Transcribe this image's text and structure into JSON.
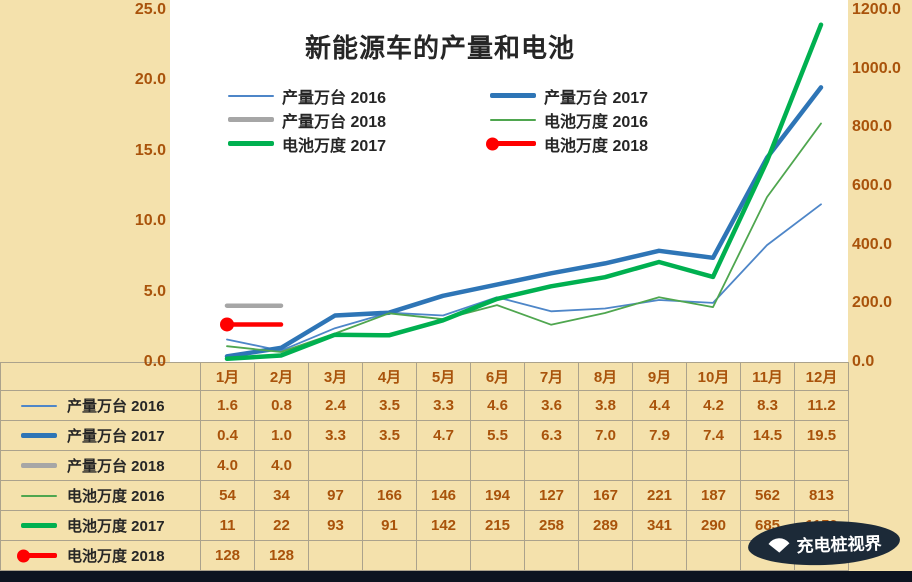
{
  "watermark": {
    "text": "充电桩视界"
  },
  "theme": {
    "background": "#F4E1AC",
    "plot_background": "#FFFFFF",
    "number_color": "#A9530B",
    "text_color": "#262626",
    "grid_color": "#ABA28C",
    "watermark_bg": "#1C2A38",
    "bottom_bar": "#0D1420"
  },
  "chart_data": {
    "type": "line",
    "title": "新能源车的产量和电池",
    "categories": [
      "1月",
      "2月",
      "3月",
      "4月",
      "5月",
      "6月",
      "7月",
      "8月",
      "9月",
      "10月",
      "11月",
      "12月"
    ],
    "left_axis": {
      "min": 0,
      "max": 25,
      "tick_labels": [
        "25.0",
        "20.0",
        "15.0",
        "10.0",
        "5.0",
        "0.0"
      ]
    },
    "right_axis": {
      "min": 0,
      "max": 1200,
      "tick_labels": [
        "1200.0",
        "1000.0",
        "800.0",
        "600.0",
        "400.0",
        "200.0",
        "0.0"
      ]
    },
    "legend_position": "top-center",
    "grid": false,
    "series": [
      {
        "name": "产量万台 2016",
        "axis": "left",
        "color": "#4E86C8",
        "width": 1.8,
        "marker": false,
        "values": [
          1.6,
          0.8,
          2.4,
          3.5,
          3.3,
          4.6,
          3.6,
          3.8,
          4.4,
          4.2,
          8.3,
          11.2
        ]
      },
      {
        "name": "产量万台 2017",
        "axis": "left",
        "color": "#2E75B6",
        "width": 4.5,
        "marker": false,
        "values": [
          0.4,
          1.0,
          3.3,
          3.5,
          4.7,
          5.5,
          6.3,
          7.0,
          7.9,
          7.4,
          14.5,
          19.5
        ]
      },
      {
        "name": "产量万台 2018",
        "axis": "left",
        "color": "#A6A6A6",
        "width": 4.5,
        "marker": false,
        "values": [
          4.0,
          4.0,
          null,
          null,
          null,
          null,
          null,
          null,
          null,
          null,
          null,
          null
        ]
      },
      {
        "name": "电池万度 2016",
        "axis": "right",
        "color": "#4FA64F",
        "width": 1.8,
        "marker": false,
        "values": [
          54,
          34,
          97,
          166,
          146,
          194,
          127,
          167,
          221,
          187,
          562,
          813
        ]
      },
      {
        "name": "电池万度 2017",
        "axis": "right",
        "color": "#00B050",
        "width": 4.5,
        "marker": false,
        "values": [
          11,
          22,
          93,
          91,
          142,
          215,
          258,
          289,
          341,
          290,
          685,
          1150
        ]
      },
      {
        "name": "电池万度 2018",
        "axis": "right",
        "color": "#FF0000",
        "width": 4.5,
        "marker": true,
        "values": [
          128,
          128,
          null,
          null,
          null,
          null,
          null,
          null,
          null,
          null,
          null,
          null
        ]
      }
    ]
  },
  "table": {
    "rows": [
      {
        "label": "产量万台 2016",
        "values": [
          "1.6",
          "0.8",
          "2.4",
          "3.5",
          "3.3",
          "4.6",
          "3.6",
          "3.8",
          "4.4",
          "4.2",
          "8.3",
          "11.2"
        ]
      },
      {
        "label": "产量万台 2017",
        "values": [
          "0.4",
          "1.0",
          "3.3",
          "3.5",
          "4.7",
          "5.5",
          "6.3",
          "7.0",
          "7.9",
          "7.4",
          "14.5",
          "19.5"
        ]
      },
      {
        "label": "产量万台 2018",
        "values": [
          "4.0",
          "4.0",
          "",
          "",
          "",
          "",
          "",
          "",
          "",
          "",
          "",
          ""
        ]
      },
      {
        "label": "电池万度 2016",
        "values": [
          "54",
          "34",
          "97",
          "166",
          "146",
          "194",
          "127",
          "167",
          "221",
          "187",
          "562",
          "813"
        ]
      },
      {
        "label": "电池万度 2017",
        "values": [
          "11",
          "22",
          "93",
          "91",
          "142",
          "215",
          "258",
          "289",
          "341",
          "290",
          "685",
          "1150"
        ]
      },
      {
        "label": "电池万度 2018",
        "values": [
          "128",
          "128",
          "",
          "",
          "",
          "",
          "",
          "",
          "",
          "",
          "",
          ""
        ]
      }
    ]
  }
}
